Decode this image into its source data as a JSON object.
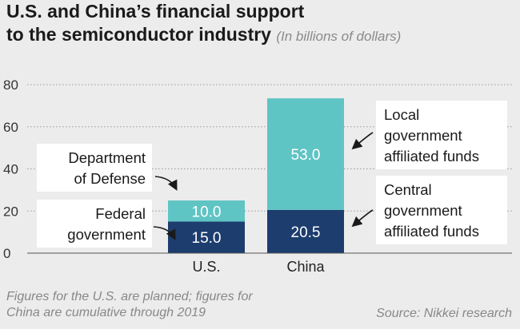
{
  "title_line1": "U.S. and China’s financial support",
  "title_line2": "to the semiconductor industry",
  "title_unit": "(In billions of dollars)",
  "footnote": "Figures for the U.S. are planned; figures for China are cumulative through 2019",
  "source": "Source: Nikkei research",
  "colors": {
    "dark": "#1d3d6e",
    "light": "#5fc4c4",
    "background": "#ececec"
  },
  "chart_data": {
    "type": "bar",
    "stacked": true,
    "categories": [
      "U.S.",
      "China"
    ],
    "series": [
      {
        "name": "Federal government",
        "values": [
          15.0,
          null
        ],
        "color": "#1d3d6e"
      },
      {
        "name": "Department of Defense",
        "values": [
          10.0,
          null
        ],
        "color": "#5fc4c4"
      },
      {
        "name": "Central government affiliated funds",
        "values": [
          null,
          20.5
        ],
        "color": "#1d3d6e"
      },
      {
        "name": "Local government affiliated funds",
        "values": [
          null,
          53.0
        ],
        "color": "#5fc4c4"
      }
    ],
    "data_labels": [
      {
        "category": "U.S.",
        "series": "Federal government",
        "text": "15.0"
      },
      {
        "category": "U.S.",
        "series": "Department of Defense",
        "text": "10.0"
      },
      {
        "category": "China",
        "series": "Central government affiliated funds",
        "text": "20.5"
      },
      {
        "category": "China",
        "series": "Local government affiliated funds",
        "text": "53.0"
      }
    ],
    "annotations": [
      {
        "lines": [
          "Department",
          "of Defense"
        ],
        "series": "Department of Defense"
      },
      {
        "lines": [
          "Federal",
          "government"
        ],
        "series": "Federal government"
      },
      {
        "lines": [
          "Local",
          "government",
          "affiliated funds"
        ],
        "series": "Local government affiliated funds"
      },
      {
        "lines": [
          "Central",
          "government",
          "affiliated funds"
        ],
        "series": "Central government affiliated funds"
      }
    ],
    "ylim": [
      0,
      80
    ],
    "yticks": [
      0,
      20,
      40,
      60,
      80
    ],
    "grid": true,
    "xlabel": "",
    "ylabel": ""
  }
}
